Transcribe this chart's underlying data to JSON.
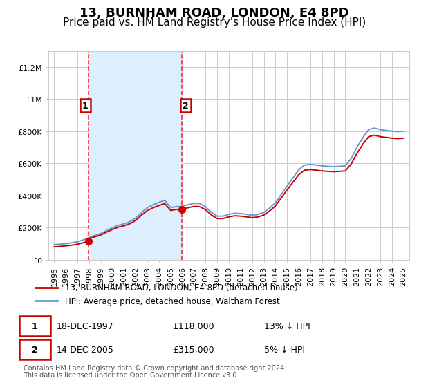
{
  "title": "13, BURNHAM ROAD, LONDON, E4 8PD",
  "subtitle": "Price paid vs. HM Land Registry's House Price Index (HPI)",
  "legend_line1": "13, BURNHAM ROAD, LONDON, E4 8PD (detached house)",
  "legend_line2": "HPI: Average price, detached house, Waltham Forest",
  "footnote": "Contains HM Land Registry data © Crown copyright and database right 2024.\nThis data is licensed under the Open Government Licence v3.0.",
  "sale1_date": 1997.96,
  "sale1_price": 118000,
  "sale2_date": 2005.96,
  "sale2_price": 315000,
  "sale1_info": "18-DEC-1997",
  "sale1_amount": "£118,000",
  "sale1_hpi": "13% ↓ HPI",
  "sale2_info": "14-DEC-2005",
  "sale2_amount": "£315,000",
  "sale2_hpi": "5% ↓ HPI",
  "ylim_max": 1300000,
  "xlim_min": 1994.5,
  "xlim_max": 2025.5,
  "property_color": "#cc0000",
  "hpi_color": "#6699cc",
  "shade_color": "#ddeeff",
  "vline_color": "#ee3333",
  "grid_color": "#cccccc",
  "title_fontsize": 13,
  "subtitle_fontsize": 11
}
